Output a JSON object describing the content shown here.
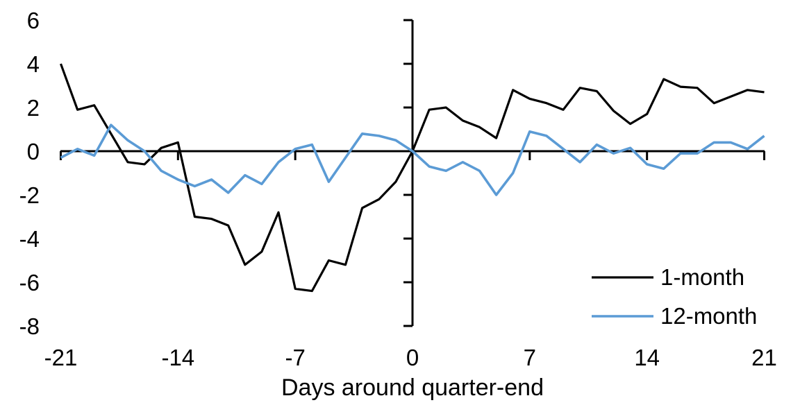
{
  "figure": {
    "xlabel": "Days around quarter-end",
    "background": "#ffffff",
    "axis_color": "#000000"
  },
  "legend": {
    "items": [
      {
        "label": "1-month",
        "color": "#000000"
      },
      {
        "label": "12-month",
        "color": "#5B9BD5"
      }
    ]
  },
  "chart_data": {
    "type": "line",
    "title": "",
    "xlabel": "Days around quarter-end",
    "ylabel": "",
    "xlim": [
      -21,
      21
    ],
    "ylim": [
      -8,
      6
    ],
    "x_ticks": [
      -21,
      -14,
      -7,
      0,
      7,
      14,
      21
    ],
    "y_ticks": [
      6,
      4,
      2,
      0,
      -2,
      -4,
      -6,
      -8
    ],
    "grid": false,
    "legend_position": "lower-right",
    "x": [
      -21,
      -20,
      -19,
      -18,
      -17,
      -16,
      -15,
      -14,
      -13,
      -12,
      -11,
      -10,
      -9,
      -8,
      -7,
      -6,
      -5,
      -4,
      -3,
      -2,
      -1,
      0,
      1,
      2,
      3,
      4,
      5,
      6,
      7,
      8,
      9,
      10,
      11,
      12,
      13,
      14,
      15,
      16,
      17,
      18,
      19,
      20,
      21
    ],
    "series": [
      {
        "name": "1-month",
        "color": "#000000",
        "values": [
          4.0,
          1.9,
          2.1,
          0.8,
          -0.5,
          -0.6,
          0.15,
          0.4,
          -3.0,
          -3.1,
          -3.4,
          -5.2,
          -4.6,
          -2.8,
          -6.3,
          -6.4,
          -5.0,
          -5.2,
          -2.6,
          -2.2,
          -1.4,
          0.0,
          1.9,
          2.0,
          1.4,
          1.1,
          0.6,
          2.8,
          2.4,
          2.2,
          1.9,
          2.9,
          2.75,
          1.85,
          1.25,
          1.7,
          3.3,
          2.95,
          2.9,
          2.2,
          2.5,
          2.8,
          2.7
        ]
      },
      {
        "name": "12-month",
        "color": "#5B9BD5",
        "values": [
          -0.3,
          0.1,
          -0.2,
          1.2,
          0.5,
          0.0,
          -0.9,
          -1.3,
          -1.6,
          -1.3,
          -1.9,
          -1.1,
          -1.5,
          -0.5,
          0.1,
          0.3,
          -1.4,
          -0.3,
          0.8,
          0.7,
          0.5,
          0.0,
          -0.7,
          -0.9,
          -0.5,
          -0.9,
          -2.0,
          -1.0,
          0.9,
          0.7,
          0.1,
          -0.5,
          0.3,
          -0.1,
          0.15,
          -0.6,
          -0.8,
          -0.1,
          -0.1,
          0.4,
          0.4,
          0.1,
          0.7
        ]
      }
    ]
  }
}
